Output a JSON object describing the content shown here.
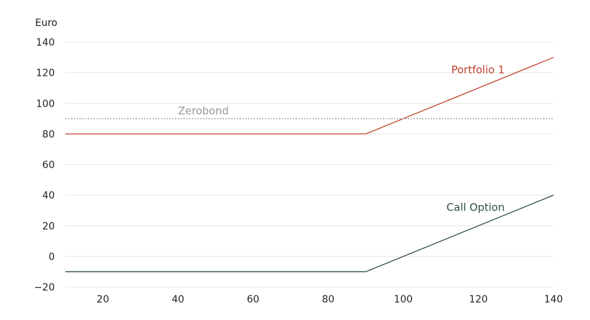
{
  "chart_data": {
    "type": "line",
    "ylabel": "Euro",
    "xlim": [
      10,
      140
    ],
    "ylim": [
      -20,
      140
    ],
    "x_ticks": [
      20,
      40,
      60,
      80,
      100,
      120,
      140
    ],
    "y_ticks": [
      -20,
      0,
      20,
      40,
      60,
      80,
      100,
      120,
      140
    ],
    "grid": "horizontal",
    "series": [
      {
        "name": "Portfolio 1",
        "color": "#c0412b",
        "style": "solid",
        "points": [
          [
            10,
            80
          ],
          [
            90,
            80
          ],
          [
            140,
            130
          ]
        ]
      },
      {
        "name": "Zerobond",
        "color": "#a6a6a6",
        "style": "dotted",
        "points": [
          [
            10,
            90
          ],
          [
            140,
            90
          ]
        ]
      },
      {
        "name": "Call Option",
        "color": "#2f4b4f",
        "style": "solid",
        "points": [
          [
            10,
            -10
          ],
          [
            90,
            -10
          ],
          [
            140,
            40
          ]
        ]
      }
    ],
    "annotations": [
      {
        "text": "Portfolio 1",
        "x": 127,
        "y": 122,
        "anchor": "end",
        "color": "#c0412b"
      },
      {
        "text": "Zerobond",
        "x": 40,
        "y": 95,
        "anchor": "start",
        "color": "#999999"
      },
      {
        "text": "Call Option",
        "x": 127,
        "y": 32,
        "anchor": "end",
        "color": "#2f4b4f"
      }
    ]
  }
}
